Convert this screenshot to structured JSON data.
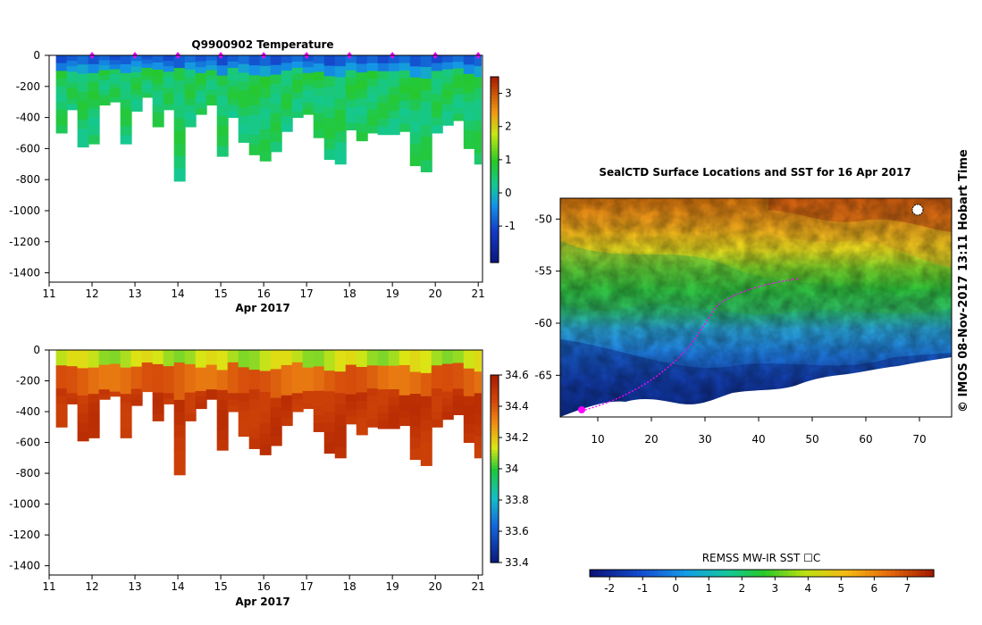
{
  "chart_data": [
    {
      "id": "temperature",
      "type": "heatmap",
      "title": "Q9900902  Temperature",
      "xlabel": "Apr 2017",
      "ylabel": "",
      "xlim": [
        11,
        21.1
      ],
      "ylim": [
        -1460,
        0
      ],
      "x_ticks": [
        "11",
        "12",
        "13",
        "14",
        "15",
        "16",
        "17",
        "18",
        "19",
        "20",
        "21"
      ],
      "y_ticks": [
        "0",
        "-200",
        "-400",
        "-600",
        "-800",
        "-1000",
        "-1200",
        "-1400"
      ],
      "marker_days": [
        12,
        13,
        14,
        15,
        16,
        17,
        18,
        19,
        20,
        21
      ],
      "colorbar": {
        "ticks": [
          "3",
          "2",
          "1",
          "0",
          "-1"
        ],
        "range": [
          -2.1,
          3.5
        ]
      },
      "profile_days": [
        11.2,
        11.45,
        11.7,
        11.95,
        12.2,
        12.45,
        12.7,
        12.95,
        13.2,
        13.45,
        13.7,
        13.95,
        14.2,
        14.45,
        14.7,
        14.95,
        15.2,
        15.45,
        15.7,
        15.95,
        16.2,
        16.45,
        16.7,
        16.95,
        17.2,
        17.45,
        17.7,
        17.95,
        18.2,
        18.45,
        18.7,
        18.95,
        19.2,
        19.45,
        19.7,
        19.95,
        20.2,
        20.45,
        20.7,
        20.95
      ],
      "profile_max_depth": [
        500,
        350,
        590,
        570,
        320,
        300,
        570,
        360,
        270,
        460,
        350,
        810,
        460,
        380,
        320,
        650,
        400,
        560,
        640,
        680,
        620,
        490,
        400,
        380,
        530,
        670,
        700,
        480,
        550,
        500,
        510,
        510,
        490,
        710,
        750,
        500,
        450,
        420,
        600,
        700
      ],
      "series_desc": "surface cold layer (~-1 to 0 C) over 0-70 m, warm deep water (~1.5 to 2 C) below"
    },
    {
      "id": "salinity",
      "type": "heatmap",
      "title": "",
      "xlabel": "Apr 2017",
      "ylabel": "",
      "xlim": [
        11,
        21.1
      ],
      "ylim": [
        -1460,
        0
      ],
      "x_ticks": [
        "11",
        "12",
        "13",
        "14",
        "15",
        "16",
        "17",
        "18",
        "19",
        "20",
        "21"
      ],
      "y_ticks": [
        "0",
        "-200",
        "-400",
        "-600",
        "-800",
        "-1000",
        "-1200",
        "-1400"
      ],
      "colorbar": {
        "ticks": [
          "34.6",
          "34.4",
          "34.2",
          "34",
          "33.8",
          "33.6",
          "33.4"
        ],
        "range": [
          33.4,
          34.6
        ]
      }
    },
    {
      "id": "sst_map",
      "type": "heatmap",
      "title": "SealCTD Surface Locations and SST for 16 Apr 2017",
      "xlabel": "",
      "ylabel": "",
      "xlim": [
        3,
        76
      ],
      "ylim": [
        -69,
        -48
      ],
      "x_ticks": [
        "10",
        "20",
        "30",
        "40",
        "50",
        "60",
        "70"
      ],
      "y_ticks": [
        "-50",
        "-55",
        "-60",
        "-65"
      ],
      "colorbar": {
        "label": "REMSS MW-IR SST ☐C",
        "ticks": [
          "-2",
          "-1",
          "0",
          "1",
          "2",
          "3",
          "4",
          "5",
          "6",
          "7"
        ],
        "range": [
          -2.6,
          7.8
        ]
      },
      "seal_track_start": [
        7,
        -68
      ],
      "side_label": "©  IMOS 08-Nov-2017 13:11 Hobart Time"
    }
  ],
  "colors": {
    "marker": "#ff00ff",
    "axis": "#000000",
    "background": "#ffffff"
  }
}
